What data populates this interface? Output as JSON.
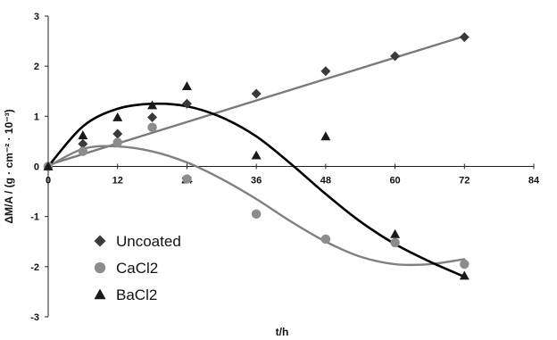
{
  "chart_data": {
    "type": "scatter",
    "xlabel": "t/h",
    "ylabel": "ΔM/A / (g · cm⁻² · 10⁻³)",
    "xlim": [
      0,
      84
    ],
    "ylim": [
      -3,
      3
    ],
    "x_ticks": [
      "0",
      "12",
      "24",
      "36",
      "48",
      "60",
      "72",
      "84"
    ],
    "y_ticks": [
      "3",
      "2",
      "1",
      "0",
      "-1",
      "-2",
      "-3"
    ],
    "grid": false,
    "legend_position": "bottom-left",
    "series": [
      {
        "name": "Uncoated",
        "marker": "diamond",
        "color": "#3a3a3a",
        "line_color": "#7a7a7a",
        "x": [
          0,
          6,
          12,
          18,
          24,
          36,
          48,
          60,
          72
        ],
        "y": [
          0.0,
          0.45,
          0.65,
          0.98,
          1.25,
          1.45,
          1.9,
          2.2,
          2.58
        ],
        "trend": "linear"
      },
      {
        "name": "CaCl2",
        "marker": "circle",
        "color": "#8c8c8c",
        "line_color": "#808080",
        "x": [
          0,
          6,
          12,
          18,
          24,
          36,
          48,
          60,
          72
        ],
        "y": [
          0.0,
          0.3,
          0.48,
          0.78,
          -0.25,
          -0.95,
          -1.45,
          -1.52,
          -1.95
        ],
        "trend": "polynomial"
      },
      {
        "name": "BaCl2",
        "marker": "triangle",
        "color": "#1a1a1a",
        "line_color": "#000000",
        "x": [
          0,
          6,
          12,
          18,
          24,
          36,
          48,
          60,
          72
        ],
        "y": [
          0.0,
          0.62,
          0.98,
          1.22,
          1.6,
          0.22,
          0.6,
          -1.35,
          -2.18
        ],
        "trend": "polynomial"
      }
    ],
    "trend_curves": {
      "Uncoated": {
        "x": [
          0,
          72
        ],
        "y": [
          0.03,
          2.6
        ]
      },
      "CaCl2": {
        "x": [
          0,
          6,
          12,
          18,
          24,
          30,
          36,
          42,
          48,
          54,
          60,
          66,
          72
        ],
        "y": [
          0.0,
          0.35,
          0.4,
          0.3,
          0.08,
          -0.25,
          -0.65,
          -1.1,
          -1.5,
          -1.8,
          -1.95,
          -1.95,
          -1.85
        ]
      },
      "BaCl2": {
        "x": [
          0,
          6,
          12,
          18,
          24,
          30,
          36,
          42,
          48,
          54,
          60,
          66,
          72
        ],
        "y": [
          0.0,
          0.8,
          1.15,
          1.25,
          1.2,
          0.98,
          0.6,
          0.05,
          -0.55,
          -1.1,
          -1.55,
          -1.9,
          -2.2
        ]
      }
    }
  }
}
